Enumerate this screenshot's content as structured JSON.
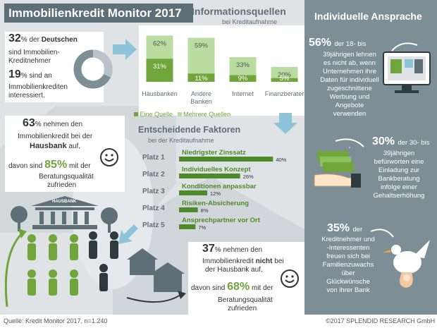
{
  "header": {
    "title": "Immobilienkredit Monitor 2017"
  },
  "left_top": {
    "pct1": "32",
    "pct1_suffix": "% der",
    "pct1_bold": "Deutschen",
    "line1": "sind Immobilien-",
    "line2": "Kreditnehmer",
    "pct2": "19",
    "pct2_suffix": "% sind an",
    "line3": "Immobilienkrediten",
    "line4": "interessiert.",
    "donut_fraction": 0.32
  },
  "left_mid": {
    "pct": "63",
    "pct_suffix": "% nehmen den",
    "line1": "Immobilienkredit bei der",
    "bold": "Hausbank",
    "bold_suffix": "auf,",
    "line2_pre": "davon sind",
    "pct2": "85%",
    "line2_post": "mit der",
    "line3": "Beratungsqualität",
    "line4": "zufrieden",
    "bank_sign": "HAUSBANK"
  },
  "center_bottom": {
    "pct": "37",
    "pct_suffix": "% nehmen den",
    "line1_pre": "Immobilienkredit",
    "bold": "nicht",
    "line1_post": "bei",
    "line2": "der Hausbank auf,",
    "line3_pre": "davon sind",
    "pct2": "68%",
    "line3_post": "mit der",
    "line4": "Beratungsqualität",
    "line5": "zufrieden"
  },
  "info_sources": {
    "title": "Informationsquellen",
    "subtitle": "bei Kreditaufnahme",
    "legend": {
      "one": "Eine Quelle",
      "many": "Mehrere Quellen"
    },
    "colors": {
      "one": "#6fa53a",
      "many": "#b9dca0"
    }
  },
  "factors": {
    "title": "Entscheidende Faktoren",
    "subtitle": "bei der Kreditaufnahme"
  },
  "chart_data": [
    {
      "type": "bar",
      "title": "Informationsquellen",
      "subtitle": "bei Kreditaufnahme",
      "categories": [
        "Hausbanken",
        "Andere Banken",
        "Internet",
        "Finanzberater"
      ],
      "series": [
        {
          "name": "Eine Quelle",
          "values": [
            31,
            11,
            9,
            5
          ]
        },
        {
          "name": "Mehrere Quellen",
          "values": [
            62,
            59,
            33,
            20
          ]
        }
      ],
      "ylim": [
        0,
        70
      ]
    },
    {
      "type": "bar",
      "title": "Entscheidende Faktoren",
      "subtitle": "bei der Kreditaufnahme",
      "categories": [
        "Platz 1",
        "Platz 2",
        "Platz 3",
        "Platz 4",
        "Platz 5"
      ],
      "labels": [
        "Niedrigster Zinssatz",
        "Individuelles Konzept",
        "Konditionen anpassbar",
        "Risiken-Absicherung",
        "Ansprechpartner vor Ort"
      ],
      "values": [
        40,
        26,
        12,
        8,
        7
      ],
      "value_labels": [
        "40%",
        "26%",
        "12%",
        "8%",
        "7%"
      ],
      "xlim": [
        0,
        45
      ]
    }
  ],
  "right": {
    "title": "Individuelle Ansprache",
    "s1": {
      "pct": "56%",
      "lines": [
        "der 18- bis",
        "39jährigen lehnen",
        "es nicht ab, wenn",
        "Unternehmen ihre",
        "Daten für individuell",
        "zugeschnittene",
        "Werbung und",
        "Angebote",
        "verwenden"
      ]
    },
    "s2": {
      "pct": "30%",
      "lines": [
        "der 30- bis",
        "39jährigen",
        "befürworten eine",
        "Einladung zur",
        "Bankberatung",
        "infolge einer",
        "Gehaltserhöhung"
      ]
    },
    "s3": {
      "pct": "35%",
      "lines": [
        "der",
        "Kreditnehmer und",
        "-Interessenten",
        "freuen sich bei",
        "Familienzuwachs",
        "über",
        "Glückwünsche",
        "von ihrer Bank"
      ]
    }
  },
  "footer": {
    "source": "Quelle: Kredit Monitor 2017, n=1.240",
    "copyright": "©2017 SPLENDID RESEARCH GmbH"
  }
}
